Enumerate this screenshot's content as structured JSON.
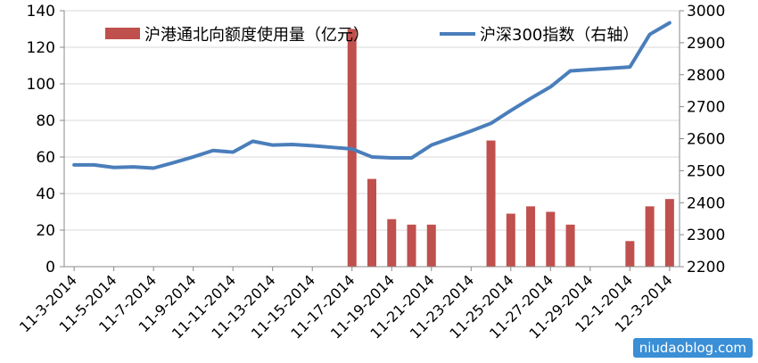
{
  "chart_data": {
    "type": "bar+line",
    "categories": [
      "11-3-2014",
      "11-4-2014",
      "11-5-2014",
      "11-6-2014",
      "11-7-2014",
      "11-8-2014",
      "11-9-2014",
      "11-10-2014",
      "11-11-2014",
      "11-12-2014",
      "11-13-2014",
      "11-14-2014",
      "11-15-2014",
      "11-16-2014",
      "11-17-2014",
      "11-18-2014",
      "11-19-2014",
      "11-20-2014",
      "11-21-2014",
      "11-22-2014",
      "11-23-2014",
      "11-24-2014",
      "11-25-2014",
      "11-26-2014",
      "11-27-2014",
      "11-28-2014",
      "11-29-2014",
      "11-30-2014",
      "12-1-2014",
      "12-2-2014",
      "12-3-2014"
    ],
    "tick_labels": [
      "11-3-2014",
      "11-5-2014",
      "11-7-2014",
      "11-9-2014",
      "11-11-2014",
      "11-13-2014",
      "11-15-2014",
      "11-17-2014",
      "11-19-2014",
      "11-21-2014",
      "11-23-2014",
      "11-25-2014",
      "11-27-2014",
      "11-29-2014",
      "12-1-2014",
      "12-3-2014"
    ],
    "series": [
      {
        "name": "沪港通北向额度使用量（亿元）",
        "type": "bar",
        "axis": "left",
        "color": "#c0504d",
        "values": [
          0,
          0,
          0,
          0,
          0,
          0,
          0,
          0,
          0,
          0,
          0,
          0,
          0,
          0,
          130,
          48,
          26,
          23,
          23,
          0,
          0,
          69,
          29,
          33,
          30,
          23,
          0,
          0,
          14,
          33,
          37
        ]
      },
      {
        "name": "沪深300指数（右轴）",
        "type": "line",
        "axis": "right",
        "color": "#4a7ebb",
        "values": [
          2518,
          2518,
          2510,
          2512,
          2508,
          2525,
          2543,
          2563,
          2558,
          2592,
          2580,
          2582,
          2578,
          2573,
          2568,
          2543,
          2540,
          2540,
          2580,
          2602,
          2624,
          2648,
          2688,
          2726,
          2762,
          2812,
          2816,
          2820,
          2824,
          2926,
          2962
        ]
      }
    ],
    "ylim_left": [
      0,
      140
    ],
    "yticks_left": [
      0,
      20,
      40,
      60,
      80,
      100,
      120,
      140
    ],
    "ylim_right": [
      2200,
      3000
    ],
    "yticks_right": [
      2200,
      2300,
      2400,
      2500,
      2600,
      2700,
      2800,
      2900,
      3000
    ],
    "legend_position": "top",
    "grid": "horizontal"
  },
  "watermark": "niudaoblog.com"
}
